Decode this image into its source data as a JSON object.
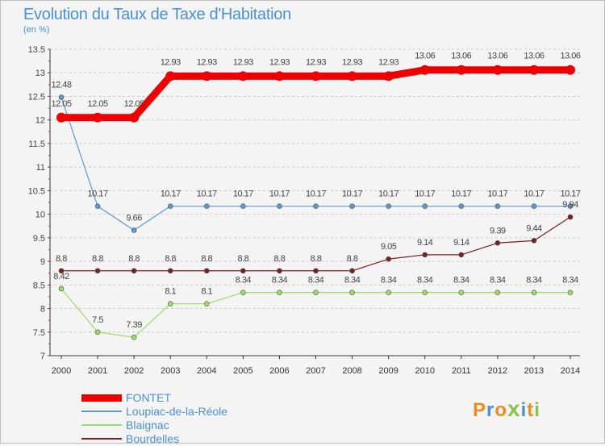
{
  "title": "Evolution du Taux de Taxe d'Habitation",
  "subtitle": "(en %)",
  "logo": {
    "text": "Proxiti",
    "colors": [
      "#f08a1c",
      "#4a90d6",
      "#f08a1c",
      "#8bc34a",
      "#4a90d6",
      "#f08a1c",
      "#8bc34a"
    ]
  },
  "chart_data": {
    "type": "line",
    "title": "Evolution du Taux de Taxe d'Habitation",
    "ylabel": "(en %)",
    "xlabel": "",
    "ylim": [
      7,
      13.5
    ],
    "yticks": [
      "7",
      "7.5",
      "8",
      "8.5",
      "9",
      "9.5",
      "10",
      "10.5",
      "11",
      "11.5",
      "12",
      "12.5",
      "13",
      "13.5"
    ],
    "grid": "horizontal dashed",
    "legend_position": "bottom-left",
    "x": [
      "2000",
      "2001",
      "2002",
      "2003",
      "2004",
      "2005",
      "2006",
      "2007",
      "2008",
      "2009",
      "2010",
      "2011",
      "2012",
      "2013",
      "2014"
    ],
    "series": [
      {
        "name": "FONTET",
        "color": "#ee0000",
        "values": [
          12.05,
          12.05,
          12.05,
          12.93,
          12.93,
          12.93,
          12.93,
          12.93,
          12.93,
          12.93,
          13.06,
          13.06,
          13.06,
          13.06,
          13.06
        ],
        "labels": [
          "12.05",
          "12.05",
          "12.05",
          "12.93",
          "12.93",
          "12.93",
          "12.93",
          "12.93",
          "12.93",
          "12.93",
          "13.06",
          "13.06",
          "13.06",
          "13.06",
          "13.06"
        ]
      },
      {
        "name": "Loupiac-de-la-Réole",
        "color": "#5b9bd5",
        "values": [
          12.48,
          10.17,
          9.66,
          10.17,
          10.17,
          10.17,
          10.17,
          10.17,
          10.17,
          10.17,
          10.17,
          10.17,
          10.17,
          10.17,
          10.17
        ],
        "labels": [
          "12.48",
          "10.17",
          "9.66",
          "10.17",
          "10.17",
          "10.17",
          "10.17",
          "10.17",
          "10.17",
          "10.17",
          "10.17",
          "10.17",
          "10.17",
          "10.17",
          "10.17"
        ]
      },
      {
        "name": "Blaignac",
        "color": "#99dd66",
        "values": [
          8.42,
          7.5,
          7.39,
          8.1,
          8.1,
          8.34,
          8.34,
          8.34,
          8.34,
          8.34,
          8.34,
          8.34,
          8.34,
          8.34,
          8.34
        ],
        "labels": [
          "8.42",
          "7.5",
          "7.39",
          "8.1",
          "8.1",
          "8.34",
          "8.34",
          "8.34",
          "8.34",
          "8.34",
          "8.34",
          "8.34",
          "8.34",
          "8.34",
          "8.34"
        ]
      },
      {
        "name": "Bourdelles",
        "color": "#7a1e1e",
        "values": [
          8.8,
          8.8,
          8.8,
          8.8,
          8.8,
          8.8,
          8.8,
          8.8,
          8.8,
          9.05,
          9.14,
          9.14,
          9.39,
          9.44,
          9.94
        ],
        "labels": [
          "8.8",
          "8.8",
          "8.8",
          "8.8",
          "8.8",
          "8.8",
          "8.8",
          "8.8",
          "8.8",
          "9.05",
          "9.14",
          "9.14",
          "9.39",
          "9.44",
          "9.94"
        ]
      }
    ]
  }
}
